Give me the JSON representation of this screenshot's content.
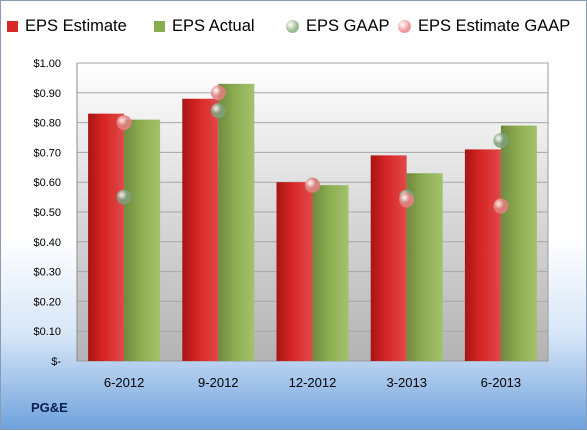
{
  "company": "PG&E",
  "legend": [
    {
      "name": "EPS Estimate",
      "color": "#d62a2a",
      "shape": "square"
    },
    {
      "name": "EPS Actual",
      "color": "#8cac52",
      "shape": "square"
    },
    {
      "name": "EPS GAAP",
      "color": "#9dbb93",
      "shape": "circle"
    },
    {
      "name": "EPS Estimate GAAP",
      "color": "#ef9a9a",
      "shape": "circle"
    }
  ],
  "chart_data": {
    "type": "bar",
    "categories": [
      "6-2012",
      "9-2012",
      "12-2012",
      "3-2013",
      "6-2013"
    ],
    "series": [
      {
        "name": "EPS Estimate",
        "kind": "bar",
        "color": "#d62a2a",
        "values": [
          0.83,
          0.88,
          0.6,
          0.69,
          0.71
        ]
      },
      {
        "name": "EPS Actual",
        "kind": "bar",
        "color": "#8cac52",
        "values": [
          0.81,
          0.93,
          0.59,
          0.63,
          0.79
        ]
      },
      {
        "name": "EPS GAAP",
        "kind": "point",
        "color": "#9dbb93",
        "values": [
          0.55,
          0.84,
          0.59,
          0.55,
          0.74
        ]
      },
      {
        "name": "EPS Estimate GAAP",
        "kind": "point",
        "color": "#ef9a9a",
        "values": [
          0.8,
          0.9,
          0.59,
          0.54,
          0.52
        ]
      }
    ],
    "y_ticks": [
      "$-",
      "$0.10",
      "$0.20",
      "$0.30",
      "$0.40",
      "$0.50",
      "$0.60",
      "$0.70",
      "$0.80",
      "$0.90",
      "$1.00"
    ],
    "ylim": [
      0,
      1.0
    ],
    "grid": true,
    "legend_position": "top"
  }
}
